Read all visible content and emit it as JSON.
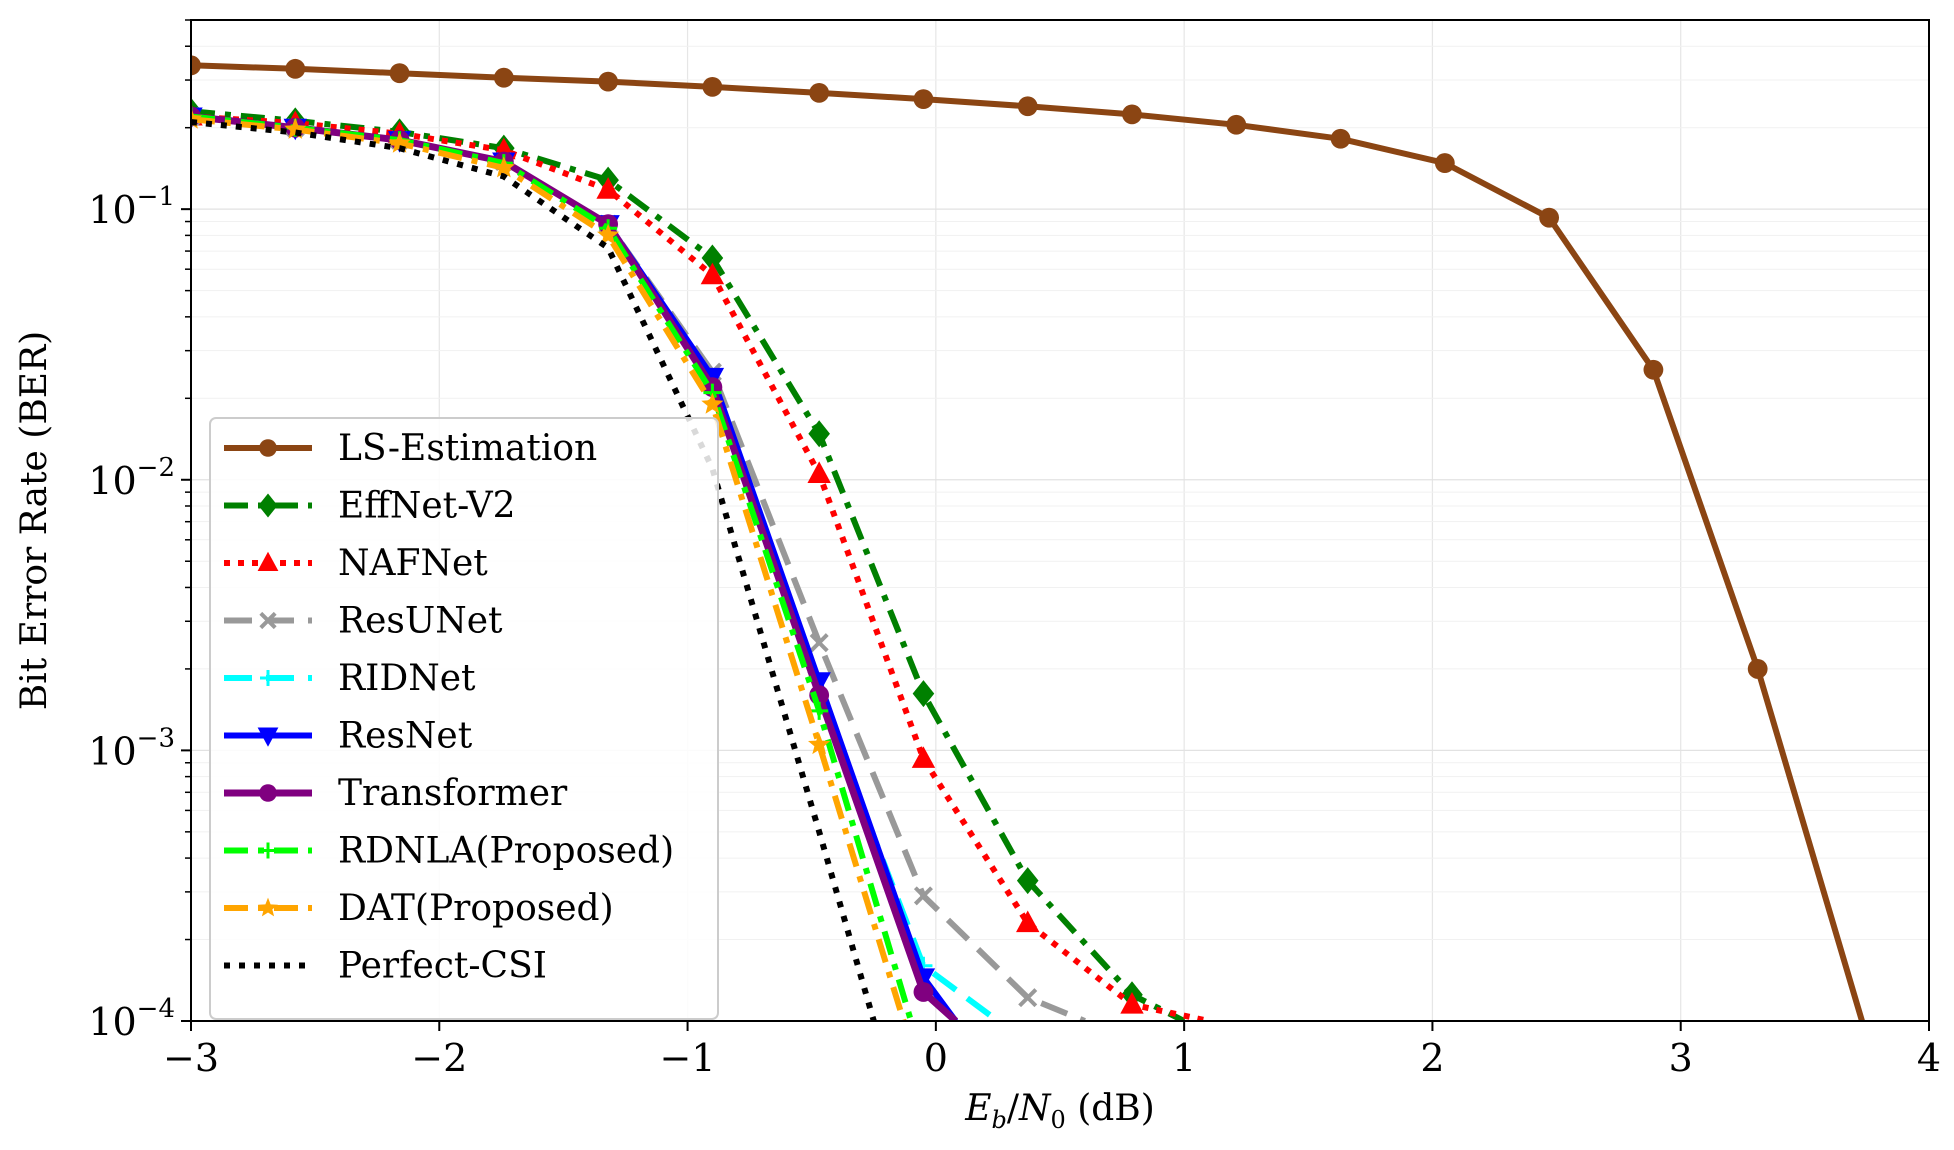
{
  "chart_data": {
    "type": "line",
    "xlabel": "E_b/N_0 (dB)",
    "xlabel_parts": {
      "e": "E",
      "b": "b",
      "slash": "/",
      "n": "N",
      "zero": "0",
      "unit": " (dB)"
    },
    "ylabel": "Bit Error Rate (BER)",
    "yscale": "log",
    "xlim": [
      -3,
      4
    ],
    "ylim": [
      0.0001,
      0.5
    ],
    "grid": true,
    "legend_position": "lower left",
    "x_ticks": [
      {
        "value": -3,
        "label": "−3"
      },
      {
        "value": -2,
        "label": "−2"
      },
      {
        "value": -1,
        "label": "−1"
      },
      {
        "value": 0,
        "label": "0"
      },
      {
        "value": 1,
        "label": "1"
      },
      {
        "value": 2,
        "label": "2"
      },
      {
        "value": 3,
        "label": "3"
      },
      {
        "value": 4,
        "label": "4"
      }
    ],
    "y_ticks": [
      {
        "value": 0.1,
        "base": "10",
        "exp": "−1"
      },
      {
        "value": 0.01,
        "base": "10",
        "exp": "−2"
      },
      {
        "value": 0.001,
        "base": "10",
        "exp": "−3"
      },
      {
        "value": 0.0001,
        "base": "10",
        "exp": "−4"
      }
    ],
    "series": [
      {
        "name": "LS-Estimation",
        "color": "#8B4513",
        "dash": "",
        "width": 6,
        "marker": "circle",
        "x": [
          -3,
          -2.58,
          -2.16,
          -1.74,
          -1.32,
          -0.9,
          -0.47,
          -0.05,
          0.37,
          0.79,
          1.21,
          1.63,
          2.05,
          2.47,
          2.89,
          3.31,
          3.73
        ],
        "y": [
          0.34,
          0.33,
          0.318,
          0.306,
          0.296,
          0.283,
          0.269,
          0.255,
          0.24,
          0.224,
          0.205,
          0.182,
          0.148,
          0.093,
          0.0255,
          0.002,
          0.0001
        ]
      },
      {
        "name": "EffNet-V2",
        "color": "#008000",
        "dash": "24,10,6,10",
        "width": 6,
        "marker": "diamond",
        "x": [
          -3,
          -2.58,
          -2.16,
          -1.74,
          -1.32,
          -0.9,
          -0.47,
          -0.05,
          0.37,
          0.79,
          1.0
        ],
        "y": [
          0.23,
          0.212,
          0.193,
          0.168,
          0.128,
          0.066,
          0.0148,
          0.00162,
          0.00033,
          0.000125,
          0.0001
        ]
      },
      {
        "name": "NAFNet",
        "color": "#ff0000",
        "dash": "6,8",
        "width": 6,
        "marker": "triangle-up",
        "x": [
          -3,
          -2.58,
          -2.16,
          -1.74,
          -1.32,
          -0.9,
          -0.47,
          -0.05,
          0.37,
          0.79,
          1.1
        ],
        "y": [
          0.22,
          0.208,
          0.19,
          0.165,
          0.118,
          0.057,
          0.0105,
          0.00093,
          0.00023,
          0.000115,
          0.0001
        ]
      },
      {
        "name": "ResUNet",
        "color": "#999999",
        "dash": "28,14",
        "width": 6,
        "marker": "x",
        "x": [
          -3,
          -2.58,
          -2.16,
          -1.74,
          -1.32,
          -0.9,
          -0.47,
          -0.05,
          0.37,
          0.6
        ],
        "y": [
          0.22,
          0.2,
          0.18,
          0.15,
          0.088,
          0.025,
          0.0025,
          0.00029,
          0.000122,
          0.0001
        ]
      },
      {
        "name": "RIDNet",
        "color": "#00ffff",
        "dash": "28,14",
        "width": 6,
        "marker": "plus",
        "x": [
          -3,
          -2.58,
          -2.16,
          -1.74,
          -1.32,
          -0.9,
          -0.47,
          -0.05,
          0.25
        ],
        "y": [
          0.22,
          0.2,
          0.18,
          0.15,
          0.088,
          0.022,
          0.0016,
          0.00016,
          0.0001
        ]
      },
      {
        "name": "ResNet",
        "color": "#0000ff",
        "dash": "",
        "width": 6,
        "marker": "triangle-down",
        "x": [
          -3,
          -2.58,
          -2.16,
          -1.74,
          -1.32,
          -0.9,
          -0.47,
          -0.05,
          0.08
        ],
        "y": [
          0.22,
          0.2,
          0.18,
          0.15,
          0.088,
          0.024,
          0.0018,
          0.000145,
          0.0001
        ]
      },
      {
        "name": "Transformer",
        "color": "#800080",
        "dash": "",
        "width": 7,
        "marker": "circle",
        "x": [
          -3,
          -2.58,
          -2.16,
          -1.74,
          -1.32,
          -0.9,
          -0.47,
          -0.05,
          0.08
        ],
        "y": [
          0.22,
          0.2,
          0.18,
          0.15,
          0.088,
          0.022,
          0.0016,
          0.000128,
          0.0001
        ]
      },
      {
        "name": "RDNLA(Proposed)",
        "color": "#00ff00",
        "dash": "24,10,6,10",
        "width": 6,
        "marker": "plus",
        "x": [
          -3,
          -2.58,
          -2.16,
          -1.74,
          -1.32,
          -0.9,
          -0.47,
          -0.1
        ],
        "y": [
          0.22,
          0.2,
          0.18,
          0.148,
          0.085,
          0.021,
          0.0014,
          0.0001
        ]
      },
      {
        "name": "DAT(Proposed)",
        "color": "#FFA500",
        "dash": "24,10,6,10",
        "width": 6,
        "marker": "star",
        "x": [
          -3,
          -2.58,
          -2.16,
          -1.74,
          -1.32,
          -0.9,
          -0.47,
          -0.13
        ],
        "y": [
          0.215,
          0.197,
          0.175,
          0.142,
          0.08,
          0.019,
          0.00105,
          0.0001
        ]
      },
      {
        "name": "Perfect-CSI",
        "color": "#000000",
        "dash": "6,9",
        "width": 6,
        "marker": "none",
        "x": [
          -3,
          -2.58,
          -2.16,
          -1.74,
          -1.32,
          -0.9,
          -0.47,
          -0.25
        ],
        "y": [
          0.21,
          0.192,
          0.168,
          0.132,
          0.072,
          0.011,
          0.0005,
          0.0001
        ]
      }
    ]
  }
}
